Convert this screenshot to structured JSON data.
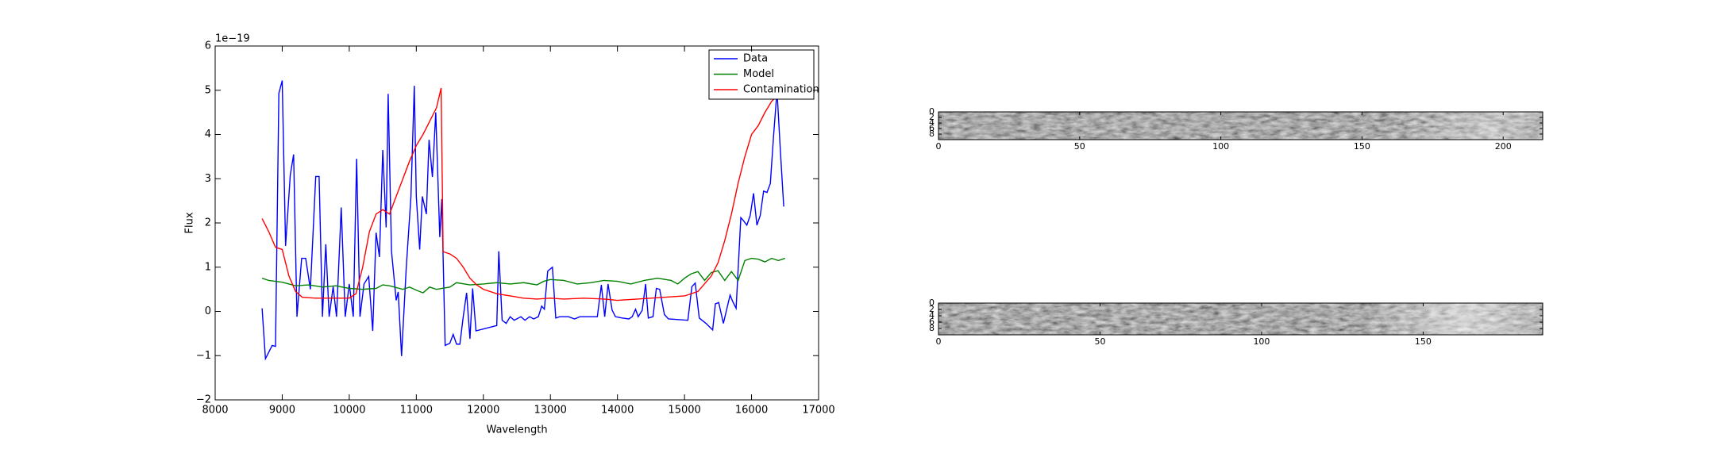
{
  "chart_data": [
    {
      "type": "line",
      "x_label": "Wavelength",
      "y_label": "Flux",
      "y_offset_label": "1e−19",
      "xlim": [
        8000,
        17000
      ],
      "xticks": [
        8000,
        9000,
        10000,
        11000,
        12000,
        13000,
        14000,
        15000,
        16000,
        17000
      ],
      "ylim": [
        -2,
        6
      ],
      "yticks": [
        {
          "value": -2,
          "label": "−2"
        },
        {
          "value": -1,
          "label": "−1"
        },
        0,
        1,
        2,
        3,
        4,
        5,
        6
      ],
      "legend": "upper right",
      "series": [
        {
          "name": "Data",
          "color": "#0000ff",
          "x": [
            8700,
            8750,
            8850,
            8900,
            8950,
            9000,
            9050,
            9120,
            9170,
            9220,
            9290,
            9350,
            9420,
            9500,
            9550,
            9600,
            9650,
            9700,
            9760,
            9810,
            9880,
            9940,
            10000,
            10060,
            10110,
            10160,
            10220,
            10290,
            10350,
            10400,
            10450,
            10500,
            10550,
            10580,
            10630,
            10700,
            10730,
            10780,
            10850,
            10920,
            10970,
            11000,
            11050,
            11090,
            11150,
            11190,
            11240,
            11290,
            11350,
            11380,
            11430,
            11500,
            11550,
            11600,
            11650,
            11700,
            11750,
            11800,
            11840,
            11890,
            12200,
            12230,
            12280,
            12340,
            12400,
            12460,
            12560,
            12620,
            12690,
            12750,
            12820,
            12870,
            12910,
            12960,
            13030,
            13080,
            13140,
            13270,
            13360,
            13440,
            13700,
            13760,
            13810,
            13860,
            13920,
            13970,
            14070,
            14170,
            14220,
            14270,
            14310,
            14370,
            14420,
            14460,
            14530,
            14580,
            14630,
            14700,
            14760,
            15050,
            15110,
            15160,
            15220,
            15320,
            15420,
            15460,
            15510,
            15580,
            15680,
            15720,
            15770,
            15840,
            15880,
            15930,
            15980,
            16030,
            16080,
            16130,
            16180,
            16230,
            16280,
            16330,
            16380,
            16430,
            16480
          ],
          "values": [
            0.07,
            -1.07,
            -0.77,
            -0.79,
            4.93,
            5.22,
            1.48,
            3.08,
            3.55,
            -0.12,
            1.2,
            1.2,
            0.5,
            3.05,
            3.05,
            -0.12,
            1.52,
            -0.12,
            0.56,
            -0.12,
            2.35,
            -0.12,
            0.62,
            -0.12,
            3.45,
            -0.12,
            0.62,
            0.79,
            -0.44,
            1.78,
            1.23,
            3.65,
            1.9,
            4.92,
            1.36,
            0.25,
            0.44,
            -1.01,
            0.99,
            2.6,
            5.1,
            2.6,
            1.4,
            2.6,
            2.2,
            3.88,
            3.04,
            4.5,
            1.68,
            2.54,
            -0.77,
            -0.72,
            -0.52,
            -0.74,
            -0.74,
            -0.12,
            0.42,
            -0.62,
            0.52,
            -0.44,
            -0.32,
            1.36,
            -0.2,
            -0.27,
            -0.12,
            -0.2,
            -0.12,
            -0.2,
            -0.12,
            -0.17,
            -0.12,
            0.12,
            0.05,
            0.91,
            1.0,
            -0.15,
            -0.12,
            -0.12,
            -0.17,
            -0.12,
            -0.12,
            0.6,
            -0.12,
            0.62,
            0.03,
            -0.12,
            -0.15,
            -0.17,
            -0.12,
            0.05,
            -0.12,
            0.03,
            0.62,
            -0.15,
            -0.12,
            0.52,
            0.5,
            -0.07,
            -0.17,
            -0.2,
            0.56,
            0.64,
            -0.15,
            -0.27,
            -0.42,
            0.17,
            0.2,
            -0.27,
            0.37,
            0.22,
            0.07,
            2.12,
            2.05,
            1.95,
            2.17,
            2.67,
            1.95,
            2.17,
            2.72,
            2.69,
            2.89,
            4.0,
            4.99,
            3.63,
            2.37
          ]
        },
        {
          "name": "Model",
          "color": "#008000",
          "x": [
            8700,
            8800,
            8900,
            9000,
            9200,
            9400,
            9600,
            9800,
            10000,
            10200,
            10400,
            10500,
            10600,
            10800,
            10900,
            11000,
            11100,
            11200,
            11300,
            11500,
            11600,
            11800,
            12000,
            12200,
            12400,
            12600,
            12800,
            12900,
            13000,
            13200,
            13400,
            13600,
            13800,
            14000,
            14200,
            14400,
            14600,
            14800,
            14900,
            15000,
            15100,
            15200,
            15300,
            15400,
            15500,
            15600,
            15700,
            15800,
            15900,
            16000,
            16100,
            16200,
            16300,
            16400,
            16500
          ],
          "values": [
            0.75,
            0.7,
            0.68,
            0.66,
            0.58,
            0.6,
            0.55,
            0.58,
            0.52,
            0.5,
            0.52,
            0.6,
            0.58,
            0.5,
            0.55,
            0.48,
            0.42,
            0.55,
            0.5,
            0.55,
            0.65,
            0.6,
            0.62,
            0.65,
            0.62,
            0.65,
            0.6,
            0.68,
            0.72,
            0.7,
            0.62,
            0.65,
            0.7,
            0.68,
            0.62,
            0.7,
            0.75,
            0.7,
            0.62,
            0.75,
            0.85,
            0.9,
            0.7,
            0.88,
            0.92,
            0.7,
            0.9,
            0.7,
            1.15,
            1.2,
            1.18,
            1.12,
            1.2,
            1.15,
            1.2
          ]
        },
        {
          "name": "Contamination",
          "color": "#ff0000",
          "x": [
            8700,
            8800,
            8900,
            9000,
            9100,
            9200,
            9300,
            9500,
            9800,
            10000,
            10100,
            10200,
            10300,
            10400,
            10500,
            10600,
            10700,
            10800,
            10900,
            11000,
            11100,
            11200,
            11300,
            11370,
            11400,
            11500,
            11600,
            11700,
            11800,
            11900,
            12000,
            12200,
            12400,
            12600,
            12800,
            13000,
            13200,
            13500,
            13800,
            14000,
            14500,
            15000,
            15200,
            15400,
            15500,
            15600,
            15700,
            15800,
            15900,
            16000,
            16100,
            16200,
            16300,
            16400
          ],
          "values": [
            2.1,
            1.8,
            1.45,
            1.4,
            0.8,
            0.45,
            0.32,
            0.3,
            0.3,
            0.3,
            0.4,
            1.0,
            1.8,
            2.2,
            2.3,
            2.2,
            2.6,
            3.0,
            3.4,
            3.75,
            4.0,
            4.3,
            4.6,
            5.05,
            1.35,
            1.3,
            1.2,
            1.0,
            0.75,
            0.6,
            0.5,
            0.4,
            0.35,
            0.3,
            0.28,
            0.3,
            0.28,
            0.3,
            0.28,
            0.25,
            0.3,
            0.35,
            0.45,
            0.8,
            1.1,
            1.6,
            2.2,
            2.9,
            3.5,
            4.0,
            4.2,
            4.5,
            4.75,
            4.9
          ]
        }
      ]
    },
    {
      "type": "image",
      "xlim": [
        0,
        214
      ],
      "xticks": [
        0,
        50,
        100,
        150,
        200
      ],
      "ylim": [
        10,
        0
      ],
      "yticks": [
        0,
        2,
        4,
        6,
        8
      ]
    },
    {
      "type": "image",
      "xlim": [
        0,
        187
      ],
      "xticks": [
        0,
        50,
        100,
        150
      ],
      "ylim": [
        10,
        0
      ],
      "yticks": [
        0,
        2,
        4,
        6,
        8
      ]
    }
  ]
}
